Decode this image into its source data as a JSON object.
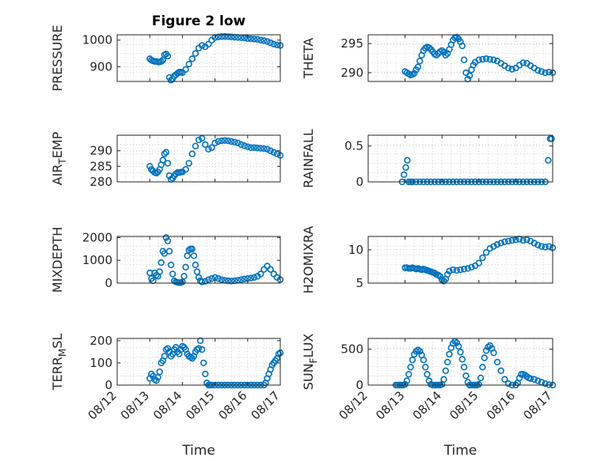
{
  "chart_data": [
    {
      "type": "scatter",
      "title": "Figure 2 low",
      "ylabel": "PRESSURE",
      "yticks": [
        900,
        1000
      ],
      "ylim": [
        845,
        1020
      ],
      "xlim": [
        0,
        5
      ],
      "xticks": [],
      "xlabel": "",
      "marker_color": "#0072BD",
      "x": [
        1.0,
        1.05,
        1.1,
        1.15,
        1.2,
        1.25,
        1.3,
        1.35,
        1.4,
        1.45,
        1.5,
        1.55,
        1.6,
        1.65,
        1.7,
        1.75,
        1.8,
        1.85,
        1.9,
        1.95,
        2.0,
        2.1,
        2.2,
        2.3,
        2.4,
        2.5,
        2.6,
        2.7,
        2.8,
        2.9,
        3.0,
        3.1,
        3.2,
        3.3,
        3.4,
        3.5,
        3.6,
        3.7,
        3.8,
        3.9,
        4.0,
        4.1,
        4.2,
        4.3,
        4.4,
        4.5,
        4.6,
        4.7,
        4.8,
        4.9,
        5.0
      ],
      "y": [
        930,
        925,
        922,
        920,
        920,
        918,
        918,
        920,
        925,
        945,
        948,
        940,
        860,
        850,
        855,
        865,
        870,
        875,
        880,
        880,
        878,
        890,
        910,
        930,
        950,
        970,
        980,
        975,
        985,
        1000,
        1010,
        1012,
        1013,
        1014,
        1013,
        1012,
        1011,
        1010,
        1009,
        1008,
        1006,
        1005,
        1004,
        1003,
        1000,
        998,
        995,
        990,
        985,
        982,
        980
      ]
    },
    {
      "type": "scatter",
      "ylabel": "THETA",
      "yticks": [
        290,
        295
      ],
      "ylim": [
        288.5,
        296.5
      ],
      "xlim": [
        0,
        5
      ],
      "xticks": [],
      "xlabel": "",
      "marker_color": "#0072BD",
      "x": [
        1.0,
        1.05,
        1.1,
        1.15,
        1.2,
        1.25,
        1.3,
        1.35,
        1.4,
        1.45,
        1.5,
        1.55,
        1.6,
        1.65,
        1.7,
        1.75,
        1.8,
        1.85,
        1.9,
        1.95,
        2.0,
        2.05,
        2.1,
        2.15,
        2.2,
        2.25,
        2.3,
        2.35,
        2.4,
        2.45,
        2.5,
        2.55,
        2.6,
        2.65,
        2.7,
        2.75,
        2.8,
        2.85,
        2.9,
        3.0,
        3.1,
        3.2,
        3.3,
        3.4,
        3.5,
        3.6,
        3.7,
        3.8,
        3.9,
        4.0,
        4.1,
        4.2,
        4.3,
        4.4,
        4.5,
        4.6,
        4.7,
        4.8,
        4.9,
        5.0
      ],
      "y": [
        290.2,
        290.0,
        289.8,
        289.6,
        289.7,
        289.9,
        290.5,
        291.0,
        292.0,
        293.0,
        293.8,
        294.2,
        294.4,
        294.3,
        294.0,
        293.6,
        293.2,
        293.0,
        293.3,
        293.6,
        293.8,
        293.5,
        293.0,
        293.3,
        294.0,
        294.8,
        295.6,
        296.0,
        296.1,
        295.8,
        295.3,
        294.6,
        292.2,
        290.0,
        288.9,
        289.5,
        290.5,
        291.3,
        291.8,
        292.2,
        292.3,
        292.4,
        292.3,
        292.2,
        292.0,
        291.6,
        291.2,
        290.8,
        290.6,
        290.8,
        291.3,
        291.7,
        291.6,
        291.2,
        290.8,
        290.4,
        290.2,
        290.0,
        290.1,
        290.0
      ]
    },
    {
      "type": "scatter",
      "ylabel": "AIR_TEMP",
      "yticks": [
        280,
        285,
        290
      ],
      "ylim": [
        280,
        295
      ],
      "xlim": [
        0,
        5
      ],
      "xticks": [],
      "xlabel": "",
      "marker_color": "#0072BD",
      "x": [
        1.0,
        1.05,
        1.1,
        1.15,
        1.2,
        1.25,
        1.3,
        1.35,
        1.4,
        1.45,
        1.5,
        1.55,
        1.6,
        1.65,
        1.7,
        1.75,
        1.8,
        1.85,
        1.9,
        1.95,
        2.0,
        2.1,
        2.2,
        2.3,
        2.4,
        2.5,
        2.6,
        2.7,
        2.8,
        2.9,
        3.0,
        3.1,
        3.2,
        3.3,
        3.4,
        3.5,
        3.6,
        3.7,
        3.8,
        3.9,
        4.0,
        4.1,
        4.2,
        4.3,
        4.4,
        4.5,
        4.6,
        4.7,
        4.8,
        4.9,
        5.0
      ],
      "y": [
        285.0,
        284.0,
        283.5,
        283.0,
        282.8,
        283.2,
        284.0,
        285.5,
        287.0,
        289.0,
        289.5,
        286.0,
        282.0,
        280.8,
        281.2,
        282.0,
        282.6,
        283.0,
        283.0,
        283.1,
        283.2,
        284.0,
        286.0,
        289.0,
        291.5,
        293.5,
        294.0,
        292.0,
        290.5,
        291.0,
        292.5,
        293.0,
        293.2,
        293.3,
        293.2,
        293.0,
        292.8,
        292.5,
        292.0,
        291.6,
        291.3,
        291.0,
        291.0,
        290.9,
        290.8,
        290.7,
        290.5,
        290.0,
        289.5,
        289.0,
        288.5
      ]
    },
    {
      "type": "scatter",
      "ylabel": "RAINFALL",
      "yticks": [
        0,
        0.5
      ],
      "ylim": [
        0,
        0.65
      ],
      "xlim": [
        0,
        5
      ],
      "xticks": [],
      "xlabel": "",
      "marker_color": "#0072BD",
      "x": [
        0.92,
        0.97,
        1.02,
        1.06,
        1.1,
        1.15,
        1.2,
        1.3,
        1.4,
        1.5,
        1.6,
        1.7,
        1.8,
        1.9,
        2.0,
        2.1,
        2.2,
        2.3,
        2.4,
        2.5,
        2.6,
        2.7,
        2.8,
        2.9,
        3.0,
        3.1,
        3.2,
        3.3,
        3.4,
        3.5,
        3.6,
        3.7,
        3.8,
        3.9,
        4.0,
        4.1,
        4.2,
        4.3,
        4.4,
        4.5,
        4.6,
        4.7,
        4.8,
        4.88,
        4.93,
        4.97
      ],
      "y": [
        0.0,
        0.1,
        0.2,
        0.3,
        0.0,
        0.0,
        0.0,
        0.0,
        0.0,
        0.0,
        0.0,
        0.0,
        0.0,
        0.0,
        0.0,
        0.0,
        0.0,
        0.0,
        0.0,
        0.0,
        0.0,
        0.0,
        0.0,
        0.0,
        0.0,
        0.0,
        0.0,
        0.0,
        0.0,
        0.0,
        0.0,
        0.0,
        0.0,
        0.0,
        0.0,
        0.0,
        0.0,
        0.0,
        0.0,
        0.0,
        0.0,
        0.0,
        0.0,
        0.3,
        0.6,
        0.6
      ]
    },
    {
      "type": "scatter",
      "ylabel": "MIXDEPTH",
      "yticks": [
        0,
        1000,
        2000
      ],
      "ylim": [
        0,
        2050
      ],
      "xlim": [
        0,
        5
      ],
      "xticks": [],
      "xlabel": "",
      "marker_color": "#0072BD",
      "x": [
        1.0,
        1.05,
        1.1,
        1.15,
        1.2,
        1.25,
        1.3,
        1.35,
        1.4,
        1.45,
        1.5,
        1.55,
        1.6,
        1.65,
        1.7,
        1.75,
        1.8,
        1.85,
        1.9,
        1.95,
        2.0,
        2.05,
        2.1,
        2.15,
        2.2,
        2.25,
        2.3,
        2.35,
        2.4,
        2.45,
        2.5,
        2.55,
        2.6,
        2.7,
        2.8,
        2.9,
        3.0,
        3.1,
        3.2,
        3.3,
        3.4,
        3.5,
        3.6,
        3.7,
        3.8,
        3.9,
        4.0,
        4.1,
        4.2,
        4.3,
        4.4,
        4.5,
        4.6,
        4.7,
        4.8,
        4.9,
        5.0
      ],
      "y": [
        450,
        200,
        100,
        450,
        350,
        300,
        500,
        900,
        1400,
        1300,
        2000,
        1850,
        1400,
        800,
        400,
        100,
        50,
        30,
        20,
        20,
        50,
        300,
        700,
        1200,
        1450,
        1500,
        1500,
        1200,
        800,
        500,
        250,
        100,
        50,
        80,
        150,
        200,
        250,
        200,
        150,
        120,
        100,
        90,
        100,
        120,
        150,
        180,
        200,
        220,
        250,
        300,
        400,
        600,
        750,
        600,
        400,
        250,
        150
      ]
    },
    {
      "type": "scatter",
      "ylabel": "H2OMIXRA",
      "yticks": [
        5,
        10
      ],
      "ylim": [
        5,
        12
      ],
      "xlim": [
        0,
        5
      ],
      "xticks": [],
      "xlabel": "",
      "marker_color": "#0072BD",
      "x": [
        1.0,
        1.05,
        1.1,
        1.15,
        1.2,
        1.25,
        1.3,
        1.35,
        1.4,
        1.45,
        1.5,
        1.55,
        1.6,
        1.65,
        1.7,
        1.75,
        1.8,
        1.85,
        1.9,
        1.95,
        2.0,
        2.05,
        2.1,
        2.15,
        2.2,
        2.3,
        2.4,
        2.5,
        2.6,
        2.7,
        2.8,
        2.9,
        3.0,
        3.1,
        3.2,
        3.3,
        3.4,
        3.5,
        3.6,
        3.7,
        3.8,
        3.9,
        4.0,
        4.1,
        4.2,
        4.3,
        4.4,
        4.5,
        4.6,
        4.7,
        4.8,
        4.9,
        5.0
      ],
      "y": [
        7.3,
        7.3,
        7.2,
        7.2,
        7.3,
        7.2,
        7.1,
        7.2,
        7.1,
        7.0,
        7.1,
        7.0,
        6.9,
        6.8,
        6.7,
        6.6,
        6.5,
        6.3,
        6.2,
        6.0,
        5.5,
        5.3,
        5.6,
        6.3,
        6.8,
        7.0,
        6.9,
        7.0,
        7.1,
        7.2,
        7.4,
        7.6,
        8.0,
        8.8,
        9.6,
        10.2,
        10.5,
        10.8,
        11.0,
        11.2,
        11.3,
        11.4,
        11.5,
        11.6,
        11.4,
        11.5,
        11.3,
        11.0,
        10.7,
        10.5,
        10.4,
        10.5,
        10.3
      ]
    },
    {
      "type": "scatter",
      "ylabel": "TERR_MSL",
      "yticks": [
        0,
        100,
        200
      ],
      "ylim": [
        0,
        210
      ],
      "xlim": [
        0,
        5
      ],
      "xticks": [
        "08/12",
        "08/13",
        "08/14",
        "08/15",
        "08/16",
        "08/17"
      ],
      "xlabel": "Time",
      "marker_color": "#0072BD",
      "x": [
        1.0,
        1.05,
        1.1,
        1.15,
        1.2,
        1.25,
        1.3,
        1.35,
        1.4,
        1.45,
        1.5,
        1.55,
        1.6,
        1.65,
        1.7,
        1.75,
        1.8,
        1.85,
        1.9,
        1.95,
        2.0,
        2.05,
        2.1,
        2.15,
        2.2,
        2.25,
        2.3,
        2.35,
        2.4,
        2.45,
        2.5,
        2.55,
        2.6,
        2.65,
        2.7,
        2.75,
        2.8,
        2.85,
        2.9,
        3.0,
        3.1,
        3.2,
        3.3,
        3.4,
        3.5,
        3.6,
        3.7,
        3.8,
        3.9,
        4.0,
        4.1,
        4.2,
        4.3,
        4.4,
        4.5,
        4.55,
        4.6,
        4.65,
        4.7,
        4.75,
        4.8,
        4.85,
        4.9,
        4.95,
        5.0
      ],
      "y": [
        30,
        50,
        40,
        25,
        20,
        35,
        60,
        100,
        110,
        130,
        160,
        165,
        150,
        130,
        140,
        160,
        170,
        150,
        140,
        160,
        175,
        170,
        160,
        140,
        130,
        125,
        120,
        130,
        150,
        160,
        165,
        200,
        160,
        100,
        50,
        10,
        0,
        0,
        0,
        0,
        0,
        0,
        0,
        0,
        0,
        0,
        0,
        0,
        0,
        0,
        0,
        0,
        0,
        0,
        0,
        10,
        30,
        50,
        70,
        90,
        100,
        110,
        120,
        140,
        145
      ]
    },
    {
      "type": "scatter",
      "ylabel": "SUN_FLUX",
      "yticks": [
        0,
        500
      ],
      "ylim": [
        0,
        650
      ],
      "xlim": [
        0,
        5
      ],
      "xticks": [
        "08/12",
        "08/13",
        "08/14",
        "08/15",
        "08/16",
        "08/17"
      ],
      "xlabel": "Time",
      "marker_color": "#0072BD",
      "x": [
        0.75,
        0.8,
        0.85,
        0.9,
        0.95,
        1.0,
        1.05,
        1.1,
        1.15,
        1.2,
        1.25,
        1.3,
        1.35,
        1.4,
        1.45,
        1.5,
        1.55,
        1.6,
        1.65,
        1.7,
        1.75,
        1.8,
        1.85,
        1.9,
        1.95,
        2.0,
        2.05,
        2.1,
        2.15,
        2.2,
        2.25,
        2.3,
        2.35,
        2.4,
        2.45,
        2.5,
        2.55,
        2.6,
        2.65,
        2.7,
        2.75,
        2.8,
        2.85,
        2.9,
        2.95,
        3.0,
        3.05,
        3.1,
        3.15,
        3.2,
        3.25,
        3.3,
        3.35,
        3.4,
        3.5,
        3.6,
        3.7,
        3.8,
        3.9,
        4.0,
        4.05,
        4.1,
        4.15,
        4.2,
        4.25,
        4.3,
        4.35,
        4.4,
        4.5,
        4.6,
        4.7,
        4.8,
        4.9,
        5.0
      ],
      "y": [
        0,
        0,
        0,
        0,
        0,
        10,
        60,
        150,
        250,
        350,
        430,
        470,
        490,
        470,
        420,
        350,
        250,
        150,
        60,
        10,
        0,
        0,
        0,
        0,
        0,
        10,
        80,
        200,
        320,
        430,
        520,
        580,
        610,
        590,
        540,
        460,
        360,
        250,
        130,
        40,
        0,
        0,
        0,
        0,
        0,
        10,
        100,
        250,
        380,
        480,
        530,
        550,
        510,
        450,
        320,
        200,
        80,
        20,
        0,
        0,
        30,
        100,
        150,
        150,
        140,
        120,
        100,
        90,
        80,
        60,
        40,
        20,
        5,
        0
      ]
    }
  ]
}
